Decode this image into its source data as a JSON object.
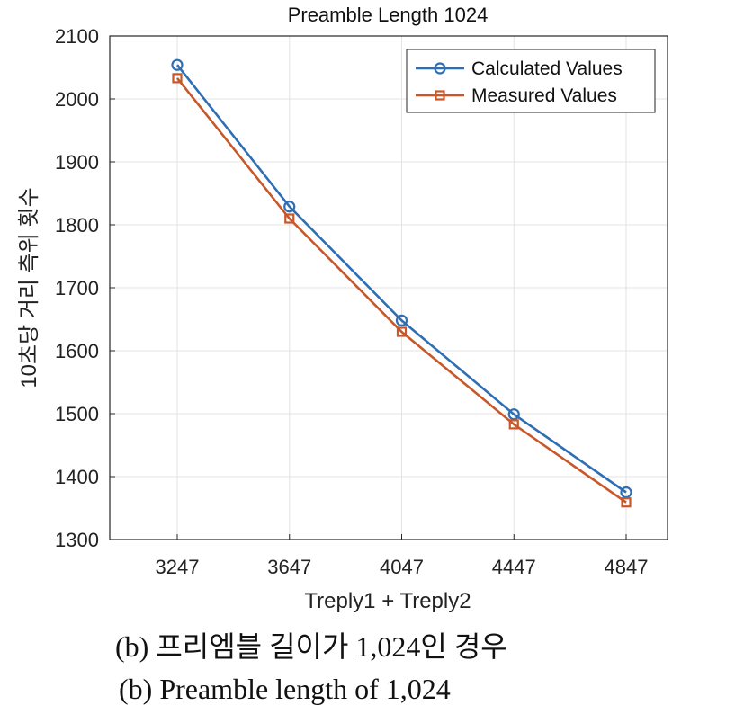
{
  "chart_data": {
    "type": "line",
    "title": "Preamble Length 1024",
    "xlabel": "Treply1 + Treply2",
    "ylabel": "10초당 거리 측위 횟수",
    "x": [
      3247,
      3647,
      4047,
      4447,
      4847
    ],
    "x_tick_labels": [
      "3247",
      "3647",
      "4047",
      "4447",
      "4847"
    ],
    "ylim": [
      1300,
      2100
    ],
    "y_ticks": [
      1300,
      1400,
      1500,
      1600,
      1700,
      1800,
      1900,
      2000,
      2100
    ],
    "y_tick_labels": [
      "1300",
      "1400",
      "1500",
      "1600",
      "1700",
      "1800",
      "1900",
      "2000",
      "2100"
    ],
    "grid": true,
    "legend_position": "top-right",
    "series": [
      {
        "name": "Calculated Values",
        "color": "#2E6FB4",
        "marker": "circle",
        "values": [
          2054,
          1829,
          1648,
          1499,
          1375
        ]
      },
      {
        "name": "Measured Values",
        "color": "#C8582A",
        "marker": "square",
        "values": [
          2033,
          1810,
          1630,
          1483,
          1359
        ]
      }
    ]
  },
  "captions": {
    "korean": "(b) 프리엠블 길이가 1,024인 경우",
    "english": "(b) Preamble length of 1,024"
  }
}
